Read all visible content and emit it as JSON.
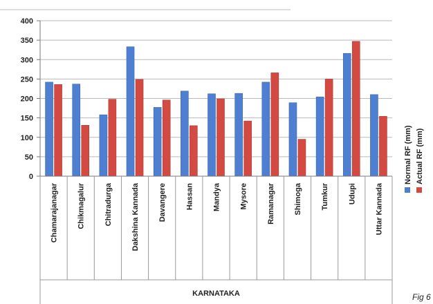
{
  "chart_data": {
    "type": "bar",
    "categories": [
      "Chamarajanagar",
      "Chikmagalur",
      "Chitradurga",
      "Dakshina Kannada",
      "Davangere",
      "Hassan",
      "Mandya",
      "Mysore",
      "Ramanagar",
      "Shimoga",
      "Tumkur",
      "Udupi",
      "Uttar Kannada"
    ],
    "group_label": "KARNATAKA",
    "series": [
      {
        "name": "Normal RF (mm)",
        "color": "#4f7fd0",
        "values": [
          242,
          237,
          158,
          333,
          177,
          219,
          212,
          213,
          242,
          189,
          204,
          316,
          210
        ]
      },
      {
        "name": "Actual RF (mm)",
        "color": "#d24a41",
        "values": [
          236,
          131,
          198,
          249,
          196,
          130,
          199,
          142,
          266,
          95,
          250,
          347,
          154
        ]
      }
    ],
    "ylim": [
      0,
      400
    ],
    "yticks": [
      "0",
      "50",
      "100",
      "150",
      "200",
      "250",
      "300",
      "350",
      "400"
    ],
    "grid": true,
    "legend_position": "right"
  },
  "figure_note": "Fig 6"
}
